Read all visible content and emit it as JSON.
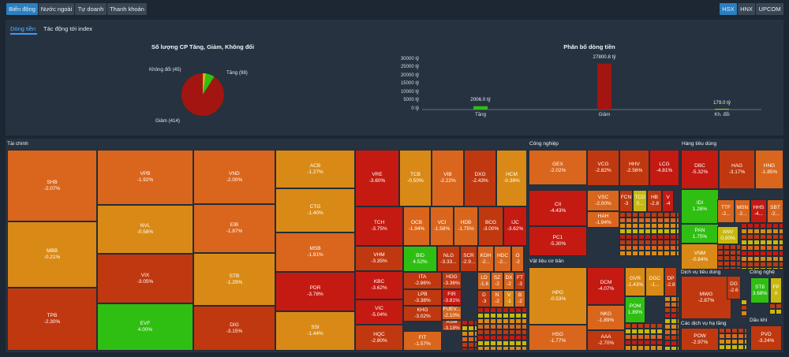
{
  "exchange_tabs": [
    "Biến động",
    "Nước ngoài",
    "Tự doanh",
    "Thanh khoản"
  ],
  "market_tabs": [
    "HSX",
    "HNX",
    "UPCOM"
  ],
  "sub_tabs": [
    "Dòng tiền",
    "Tác động tới index"
  ],
  "pie": {
    "title": "Số lượng CP Tăng, Giảm, Không đổi",
    "labels": {
      "up": "Tăng (98)",
      "down": "Giảm (414)",
      "flat": "Không đổi (45)"
    },
    "values": {
      "up": 98,
      "down": 414,
      "flat": 45
    }
  },
  "bar": {
    "title": "Phân bổ dòng tiền",
    "y_ticks": [
      "30000 tỷ",
      "25000 tỷ",
      "20000 tỷ",
      "15000 tỷ",
      "10000 tỷ",
      "5000 tỷ",
      "0 tỷ"
    ],
    "categories": [
      "Tăng",
      "Giảm",
      "Kh. đổi"
    ],
    "value_labels": [
      "2006.0 tỷ",
      "27800.8 tỷ",
      "179.0 tỷ"
    ],
    "values": [
      2006.0,
      27800.8,
      179.0
    ],
    "ylim": [
      0,
      30000
    ]
  },
  "colors": {
    "green": "#2fbf13",
    "red": "#c41a12",
    "dark_red": "#a31510",
    "orange": "#d9661c",
    "amber": "#d98a16",
    "yellow": "#c8b80e",
    "background": "#1c2733",
    "active": "#2a7fc0"
  },
  "sections": {
    "tai_chinh": "Tài chính",
    "cong_nghiep": "Công nghiệp",
    "hang_tieu_dung": "Hàng tiêu dùng",
    "vat_lieu": "Vật liệu cơ bản",
    "dv_tieu_dung": "Dịch vụ tiêu dùng",
    "cong_nghe": "Công nghệ",
    "dv_ha_tang": "Các dịch vụ hạ tầng",
    "dau_khi": "Dầu khí"
  },
  "tiles": [
    {
      "s": "SHB",
      "c": "-2.07%"
    },
    {
      "s": "MBB",
      "c": "-0.21%"
    },
    {
      "s": "TPB",
      "c": "-2.30%"
    },
    {
      "s": "VPB",
      "c": "-1.92%"
    },
    {
      "s": "NVL",
      "c": "-0.58%"
    },
    {
      "s": "VIX",
      "c": "-3.05%"
    },
    {
      "s": "EVF",
      "c": "4.00%"
    },
    {
      "s": "VND",
      "c": "-2.00%"
    },
    {
      "s": "EIB",
      "c": "-1.87%"
    },
    {
      "s": "STB",
      "c": "-1.29%"
    },
    {
      "s": "DIG",
      "c": "-3.15%"
    },
    {
      "s": "ACB",
      "c": "-1.27%"
    },
    {
      "s": "CTG",
      "c": "-1.40%"
    },
    {
      "s": "MSB",
      "c": "-1.91%"
    },
    {
      "s": "PDR",
      "c": "-3.78%"
    },
    {
      "s": "SSI",
      "c": "-1.44%"
    },
    {
      "s": "VRE",
      "c": "-3.60%"
    },
    {
      "s": "TCB",
      "c": "-0.50%"
    },
    {
      "s": "VIB",
      "c": "-2.22%"
    },
    {
      "s": "DXG",
      "c": "-2.43%"
    },
    {
      "s": "HCM",
      "c": "-0.38%"
    },
    {
      "s": "TCH",
      "c": "-3.75%"
    },
    {
      "s": "OCB",
      "c": "-1.94%"
    },
    {
      "s": "VCI",
      "c": "-1.58%"
    },
    {
      "s": "HDB",
      "c": "-1.75%"
    },
    {
      "s": "BCG",
      "c": "-3.00%"
    },
    {
      "s": "IJC",
      "c": "-3.62%"
    },
    {
      "s": "VHM",
      "c": "-3.35%"
    },
    {
      "s": "BID",
      "c": "4.52%"
    },
    {
      "s": "NLG",
      "c": "-3.33..."
    },
    {
      "s": "SCR",
      "c": "-2.9..."
    },
    {
      "s": "KDH",
      "c": "-2..."
    },
    {
      "s": "HDC",
      "c": "-2..."
    },
    {
      "s": "O",
      "c": "-2"
    },
    {
      "s": "KBC",
      "c": "-3.62%"
    },
    {
      "s": "ITA",
      "c": "-2.86%"
    },
    {
      "s": "HDG",
      "c": "-3.36%"
    },
    {
      "s": "LD",
      "c": "-1.6"
    },
    {
      "s": "SZ",
      "c": "-2"
    },
    {
      "s": "DX",
      "c": "-2"
    },
    {
      "s": "FT",
      "c": "-3"
    },
    {
      "s": "VIC",
      "c": "-5.04%"
    },
    {
      "s": "LPB",
      "c": "-3.38%"
    },
    {
      "s": "FIR",
      "c": "-3.81%"
    },
    {
      "s": "D",
      "c": "-3"
    },
    {
      "s": "N",
      "c": "-2"
    },
    {
      "s": "V",
      "c": "-1"
    },
    {
      "s": "B",
      "c": "-2"
    },
    {
      "s": "HQC",
      "c": "-2.80%"
    },
    {
      "s": "KHG",
      "c": "-3.02%"
    },
    {
      "s": "FUEV...",
      "c": "-2.10%"
    },
    {
      "s": "ASM",
      "c": "-3.18%"
    },
    {
      "s": "FIT",
      "c": "-1.57%"
    },
    {
      "s": "GEX",
      "c": "-2.02%"
    },
    {
      "s": "VCG",
      "c": "-2.82%"
    },
    {
      "s": "HHV",
      "c": "-2.56%"
    },
    {
      "s": "LCG",
      "c": "-4.81%"
    },
    {
      "s": "CII",
      "c": "-4.43%"
    },
    {
      "s": "VSC",
      "c": "-2.00%"
    },
    {
      "s": "FCN",
      "c": "-3"
    },
    {
      "s": "TCD",
      "c": "0..."
    },
    {
      "s": "HB",
      "c": "-2.8"
    },
    {
      "s": "V",
      "c": "-4"
    },
    {
      "s": "HAH",
      "c": "-1.94%"
    },
    {
      "s": "PC1",
      "c": "-5.30%"
    },
    {
      "s": "HPG",
      "c": "-0.53%"
    },
    {
      "s": "DCM",
      "c": "-4.07%"
    },
    {
      "s": "GVR",
      "c": "-1.43%"
    },
    {
      "s": "DGC",
      "c": "-1..."
    },
    {
      "s": "DP",
      "c": "-2.8"
    },
    {
      "s": "NKG",
      "c": "-1.89%"
    },
    {
      "s": "POM",
      "c": "1.89%"
    },
    {
      "s": "HSG",
      "c": "-1.77%"
    },
    {
      "s": "AAA",
      "c": "-2.70%"
    },
    {
      "s": "DBC",
      "c": "-5.32%"
    },
    {
      "s": "HAG",
      "c": "-3.17%"
    },
    {
      "s": "HNG",
      "c": "-1.85%"
    },
    {
      "s": "IDI",
      "c": "1.28%"
    },
    {
      "s": "TTF",
      "c": "-2..."
    },
    {
      "s": "MSN",
      "c": "-2..."
    },
    {
      "s": "HHS",
      "c": "-4..."
    },
    {
      "s": "SBT",
      "c": "-2..."
    },
    {
      "s": "PAN",
      "c": "1.75%"
    },
    {
      "s": "ANV",
      "c": "0.00%"
    },
    {
      "s": "VNM",
      "c": "-0.84%"
    },
    {
      "s": "MWG",
      "c": "-2.87%"
    },
    {
      "s": "DG",
      "c": "-2.6"
    },
    {
      "s": "ST8",
      "c": "3.68%"
    },
    {
      "s": "FP",
      "c": "0"
    },
    {
      "s": "POW",
      "c": "-2.97%"
    },
    {
      "s": "PVD",
      "c": "-3.24%"
    }
  ]
}
